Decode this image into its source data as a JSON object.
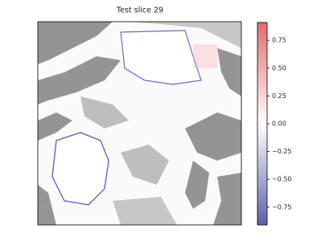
{
  "chart_data": {
    "type": "heatmap",
    "title": "Test slice 29",
    "colorbar": {
      "lim": [
        -0.91,
        0.91
      ],
      "ticks": [
        {
          "value": 0.75,
          "label": "0.75"
        },
        {
          "value": 0.5,
          "label": "0.50"
        },
        {
          "value": 0.25,
          "label": "0.25"
        },
        {
          "value": 0,
          "label": "0.00"
        },
        {
          "value": -0.25,
          "label": "−0.25"
        },
        {
          "value": -0.5,
          "label": "−0.50"
        },
        {
          "value": -0.75,
          "label": "−0.75"
        }
      ],
      "colors": [
        "#5f5fb0",
        "#ffffff",
        "#e46a6a"
      ]
    }
  }
}
